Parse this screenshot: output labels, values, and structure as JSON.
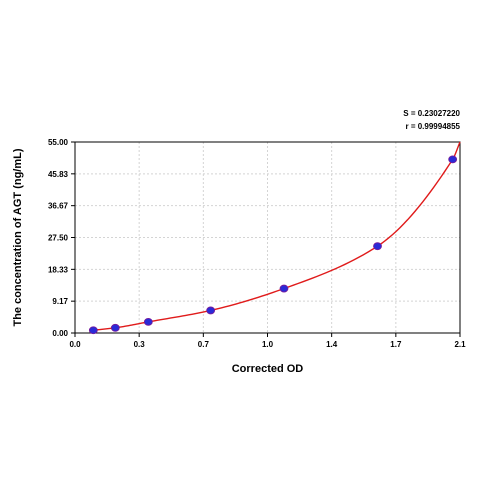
{
  "chart_data": {
    "type": "scatter",
    "xlabel": "Corrected OD",
    "ylabel": "The concentration of AGT (ng/mL)",
    "xlim": [
      0.0,
      2.1
    ],
    "ylim": [
      0.0,
      55.0
    ],
    "x_ticks": [
      "0.0",
      "0.3",
      "0.7",
      "1.0",
      "1.4",
      "1.7",
      "2.1"
    ],
    "y_ticks": [
      "0.00",
      "9.17",
      "18.33",
      "27.50",
      "36.67",
      "45.83",
      "55.00"
    ],
    "grid": true,
    "stats": [
      "S = 0.23027220",
      "r = 0.99994855"
    ],
    "series": [
      {
        "type": "scatter",
        "x": [
          0.1,
          0.22,
          0.4,
          0.74,
          1.14,
          1.65,
          2.06
        ],
        "y": [
          0.8,
          1.5,
          3.2,
          6.5,
          12.8,
          25.0,
          50.0
        ],
        "marker_color": "#2a2ad6"
      },
      {
        "type": "line",
        "x": [
          0.1,
          0.22,
          0.4,
          0.74,
          1.14,
          1.65,
          2.06,
          2.1
        ],
        "y": [
          0.8,
          1.5,
          3.2,
          6.5,
          12.8,
          25.0,
          50.0,
          55.0
        ],
        "color": "#e01b1b"
      }
    ]
  }
}
